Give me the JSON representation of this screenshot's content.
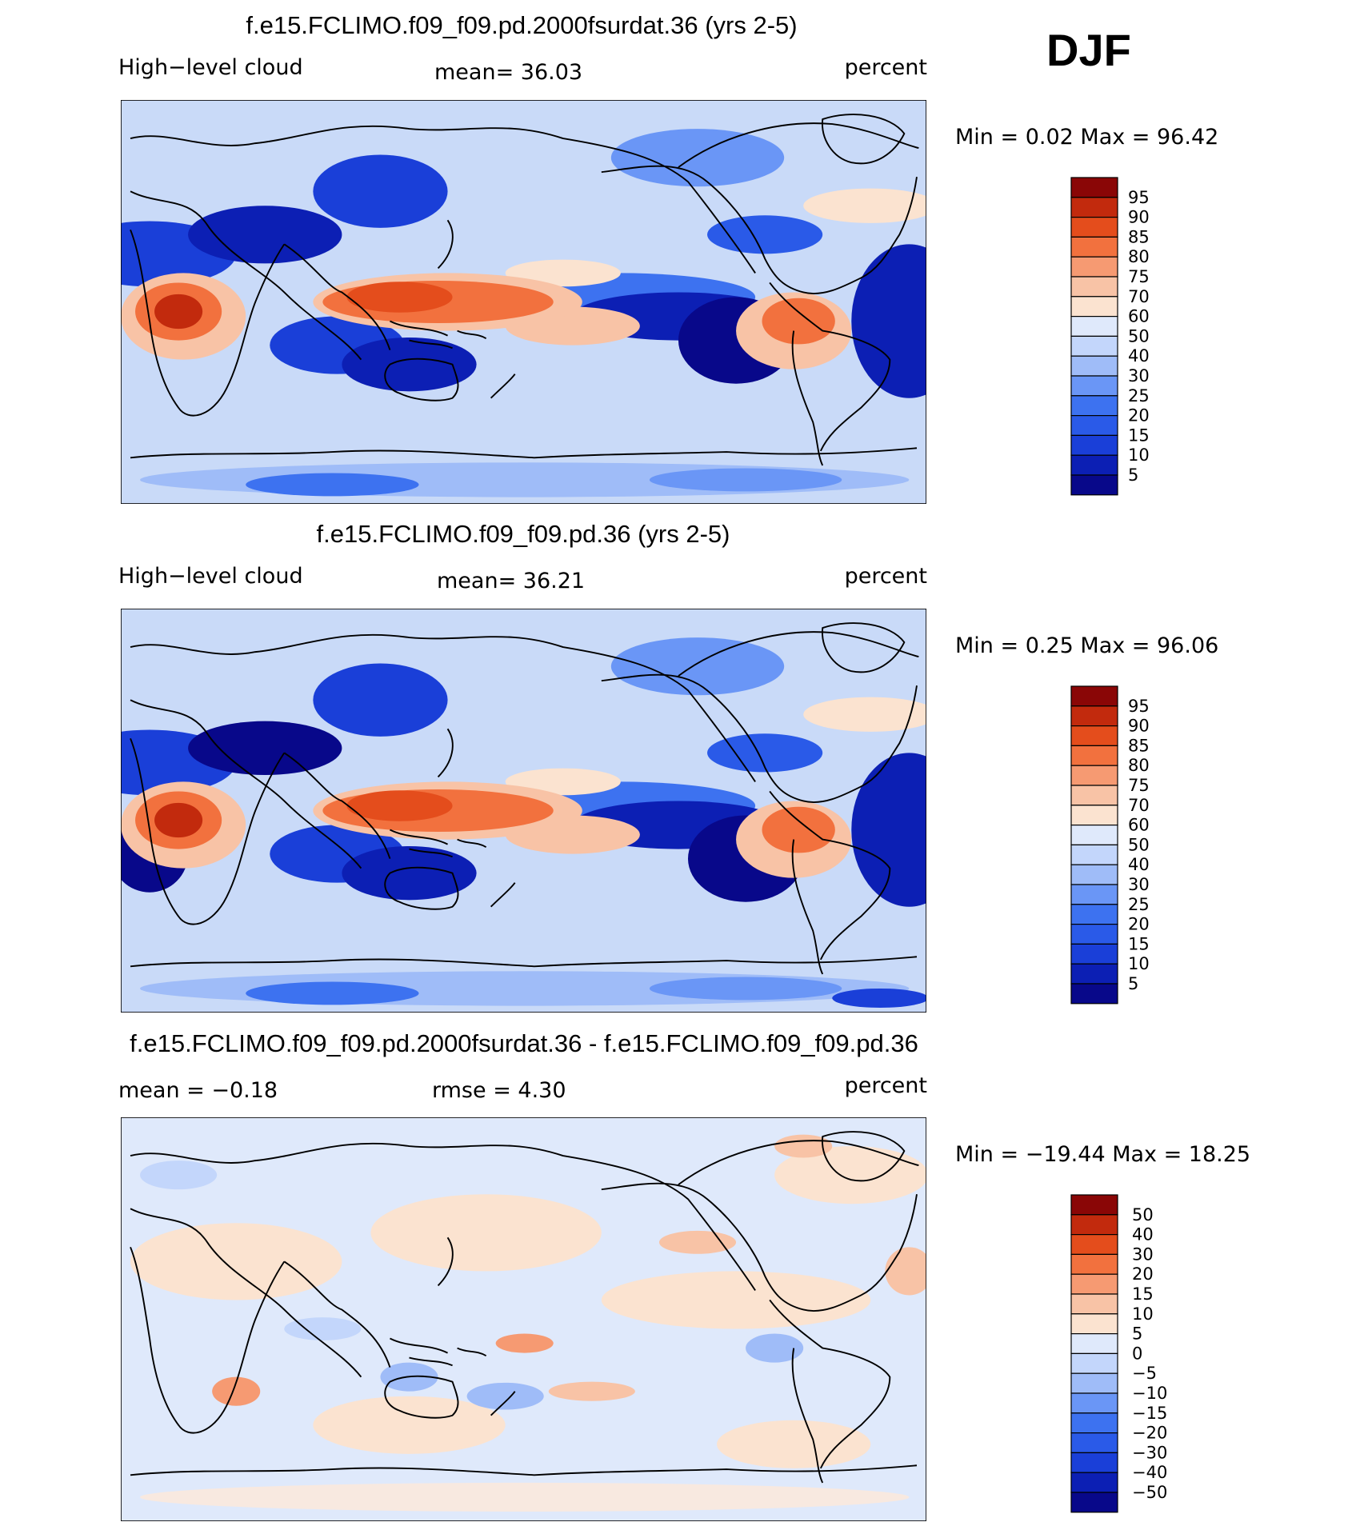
{
  "season": "DJF",
  "variable": "High-level cloud",
  "units": "percent",
  "chart_data": [
    {
      "type": "heatmap",
      "title": "f.e15.FCLIMO.f09_f09.pd.2000fsurdat.36 (yrs 2-5)",
      "left_label": "High−level  cloud",
      "center_label": "mean=   36.03",
      "right_label": "percent",
      "min_max_label": "Min =    0.02  Max =   96.42",
      "mean": 36.03,
      "min": 0.02,
      "max": 96.42,
      "colorbar_levels": [
        "95",
        "90",
        "85",
        "80",
        "75",
        "70",
        "60",
        "50",
        "40",
        "30",
        "25",
        "20",
        "15",
        "10",
        "5"
      ]
    },
    {
      "type": "heatmap",
      "title": "f.e15.FCLIMO.f09_f09.pd.36 (yrs 2-5)",
      "left_label": "High−level  cloud",
      "center_label": "mean=   36.21",
      "right_label": "percent",
      "min_max_label": "Min =    0.25  Max =   96.06",
      "mean": 36.21,
      "min": 0.25,
      "max": 96.06,
      "colorbar_levels": [
        "95",
        "90",
        "85",
        "80",
        "75",
        "70",
        "60",
        "50",
        "40",
        "30",
        "25",
        "20",
        "15",
        "10",
        "5"
      ]
    },
    {
      "type": "heatmap",
      "title": "f.e15.FCLIMO.f09_f09.pd.2000fsurdat.36 - f.e15.FCLIMO.f09_f09.pd.36",
      "left_label": "mean  =    −0.18",
      "center_label": "rmse  =     4.30",
      "right_label": "percent",
      "min_max_label": "Min = −19.44  Max =    18.25",
      "mean": -0.18,
      "rmse": 4.3,
      "min": -19.44,
      "max": 18.25,
      "colorbar_levels": [
        "50",
        "40",
        "30",
        "20",
        "15",
        "10",
        "5",
        "0",
        "−5",
        "−10",
        "−15",
        "−20",
        "−30",
        "−40",
        "−50"
      ]
    }
  ],
  "colors": {
    "scale16": [
      "#08088a",
      "#0c1fb4",
      "#1a3fd8",
      "#2a5ae8",
      "#3d72f0",
      "#6a96f6",
      "#9fbcf8",
      "#c3d6fb",
      "#dfe9fb",
      "#fbe3d0",
      "#f8c3a6",
      "#f69a72",
      "#f2713e",
      "#e44d1c",
      "#c22a0d",
      "#8a0606"
    ],
    "ocean_bg": "#c9daf8",
    "coastline": "#000000"
  }
}
